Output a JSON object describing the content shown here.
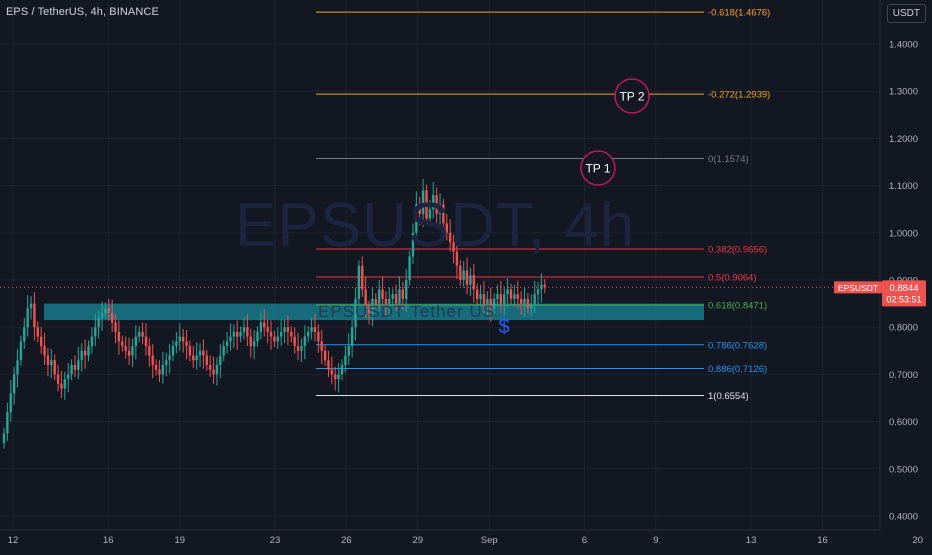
{
  "header": {
    "title": "EPS / TetherUS, 4h, BINANCE",
    "currency_button": "USDT"
  },
  "watermark": {
    "symbol": "EPSUSDT, 4h",
    "sub": "EPSUSDT Tether US"
  },
  "price_tag": {
    "symbol": "EPSUSDT",
    "price": "0.8844",
    "countdown": "02:53:51"
  },
  "colors": {
    "background": "#131722",
    "up": "#26a69a",
    "down": "#ef5350",
    "zone": "#1a8a9a",
    "tp_circle": "#c2185b",
    "dollar": "#2962ff"
  },
  "chart_data": {
    "type": "candlestick",
    "ylim": [
      0.38,
      1.5
    ],
    "y_ticks": [
      "1.4000",
      "1.3000",
      "1.2000",
      "1.1000",
      "1.0000",
      "0.9000",
      "0.8000",
      "0.7000",
      "0.6000",
      "0.5000",
      "0.4000"
    ],
    "x_ticks": [
      "12",
      "16",
      "19",
      "23",
      "26",
      "29",
      "Sep",
      "6",
      "9",
      "13",
      "16",
      "20"
    ],
    "x_tick_index": [
      0,
      4,
      7,
      11,
      14,
      17,
      20,
      24,
      27,
      31,
      34,
      38
    ],
    "x_range": [
      -0.55,
      38.6
    ],
    "current_price": 0.8844,
    "candles_close": [
      0.575,
      0.62,
      0.66,
      0.7,
      0.73,
      0.77,
      0.8,
      0.84,
      0.85,
      0.8,
      0.78,
      0.76,
      0.74,
      0.72,
      0.73,
      0.7,
      0.68,
      0.67,
      0.69,
      0.7,
      0.72,
      0.71,
      0.73,
      0.75,
      0.74,
      0.76,
      0.78,
      0.8,
      0.82,
      0.83,
      0.84,
      0.83,
      0.81,
      0.79,
      0.77,
      0.76,
      0.75,
      0.74,
      0.76,
      0.78,
      0.79,
      0.78,
      0.76,
      0.74,
      0.72,
      0.71,
      0.7,
      0.72,
      0.73,
      0.74,
      0.76,
      0.77,
      0.78,
      0.77,
      0.76,
      0.74,
      0.73,
      0.74,
      0.75,
      0.74,
      0.72,
      0.71,
      0.7,
      0.72,
      0.74,
      0.76,
      0.77,
      0.78,
      0.79,
      0.78,
      0.79,
      0.8,
      0.78,
      0.76,
      0.77,
      0.79,
      0.81,
      0.8,
      0.79,
      0.78,
      0.77,
      0.78,
      0.79,
      0.8,
      0.79,
      0.78,
      0.76,
      0.75,
      0.76,
      0.78,
      0.79,
      0.8,
      0.79,
      0.77,
      0.75,
      0.73,
      0.71,
      0.7,
      0.69,
      0.7,
      0.72,
      0.74,
      0.76,
      0.8,
      0.86,
      0.93,
      0.88,
      0.84,
      0.83,
      0.86,
      0.85,
      0.88,
      0.86,
      0.85,
      0.86,
      0.87,
      0.85,
      0.88,
      0.86,
      0.9,
      0.95,
      1.0,
      1.06,
      1.04,
      1.09,
      1.03,
      1.05,
      1.08,
      1.04,
      1.06,
      1.02,
      1.0,
      0.98,
      0.96,
      0.93,
      0.9,
      0.92,
      0.89,
      0.91,
      0.88,
      0.86,
      0.87,
      0.85,
      0.86,
      0.84,
      0.86,
      0.87,
      0.85,
      0.87,
      0.88,
      0.86,
      0.87,
      0.86,
      0.85,
      0.86,
      0.84,
      0.85,
      0.87,
      0.88,
      0.89,
      0.8844
    ],
    "fib_levels": [
      {
        "label": "-0.618(1.4676)",
        "value": 1.4676,
        "color": "#f7a21b"
      },
      {
        "label": "-0.272(1.2939)",
        "value": 1.2939,
        "color": "#f7a21b"
      },
      {
        "label": "0(1.1574)",
        "value": 1.1574,
        "color": "#787b86"
      },
      {
        "label": "0.382(0.9656)",
        "value": 0.9656,
        "color": "#f23645"
      },
      {
        "label": "0.5(0.9064)",
        "value": 0.9064,
        "color": "#f23645"
      },
      {
        "label": "0.618(0.8471)",
        "value": 0.8471,
        "color": "#4caf50"
      },
      {
        "label": "0.786(0.7628)",
        "value": 0.7628,
        "color": "#2196f3"
      },
      {
        "label": "0.886(0.7126)",
        "value": 0.7126,
        "color": "#2196f3"
      },
      {
        "label": "1(0.6554)",
        "value": 0.6554,
        "color": "#e0e3eb"
      }
    ],
    "support_zone": [
      0.815,
      0.85
    ],
    "annotations": [
      {
        "label": "TP 2",
        "price": 1.2939
      },
      {
        "label": "TP 1",
        "price": 1.1574
      },
      {
        "label": "$",
        "price": 0.8
      }
    ]
  }
}
